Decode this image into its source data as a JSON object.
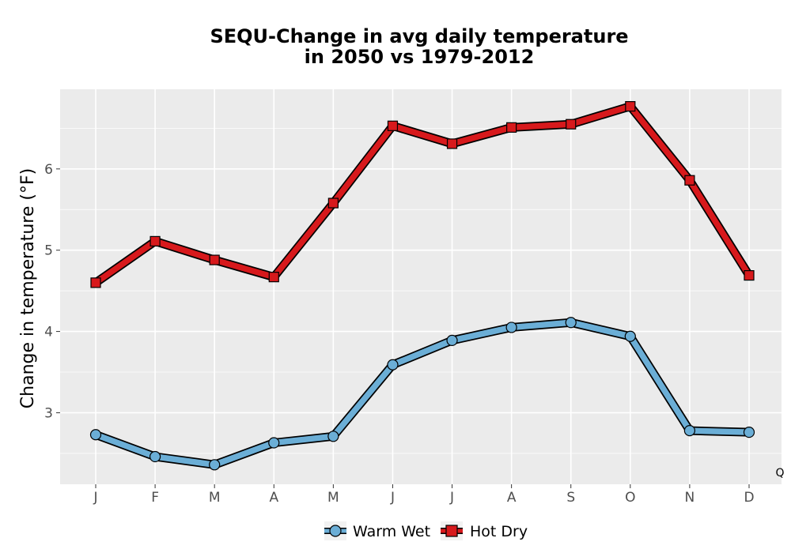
{
  "chart_data": {
    "type": "line",
    "title_lines": [
      "SEQU-Change in avg daily temperature",
      "in 2050 vs 1979-2012"
    ],
    "xlabel": "",
    "ylabel": "Change in temperature (°F)",
    "categories": [
      "J",
      "F",
      "M",
      "A",
      "M",
      "J",
      "J",
      "A",
      "S",
      "O",
      "N",
      "D"
    ],
    "ylim": [
      2.12,
      6.98
    ],
    "yticks": [
      3,
      4,
      5,
      6
    ],
    "grid": true,
    "legend_position": "bottom",
    "corner_note": "Q",
    "series": [
      {
        "name": "Warm Wet",
        "marker": "circle",
        "color": "#6baed6",
        "values": [
          2.73,
          2.46,
          2.36,
          2.63,
          2.71,
          3.59,
          3.89,
          4.05,
          4.11,
          3.94,
          2.78,
          2.76
        ]
      },
      {
        "name": "Hot Dry",
        "marker": "square",
        "color": "#d7191c",
        "values": [
          4.6,
          5.11,
          4.88,
          4.67,
          5.58,
          6.53,
          6.31,
          6.51,
          6.55,
          6.77,
          5.86,
          4.69
        ]
      }
    ]
  }
}
